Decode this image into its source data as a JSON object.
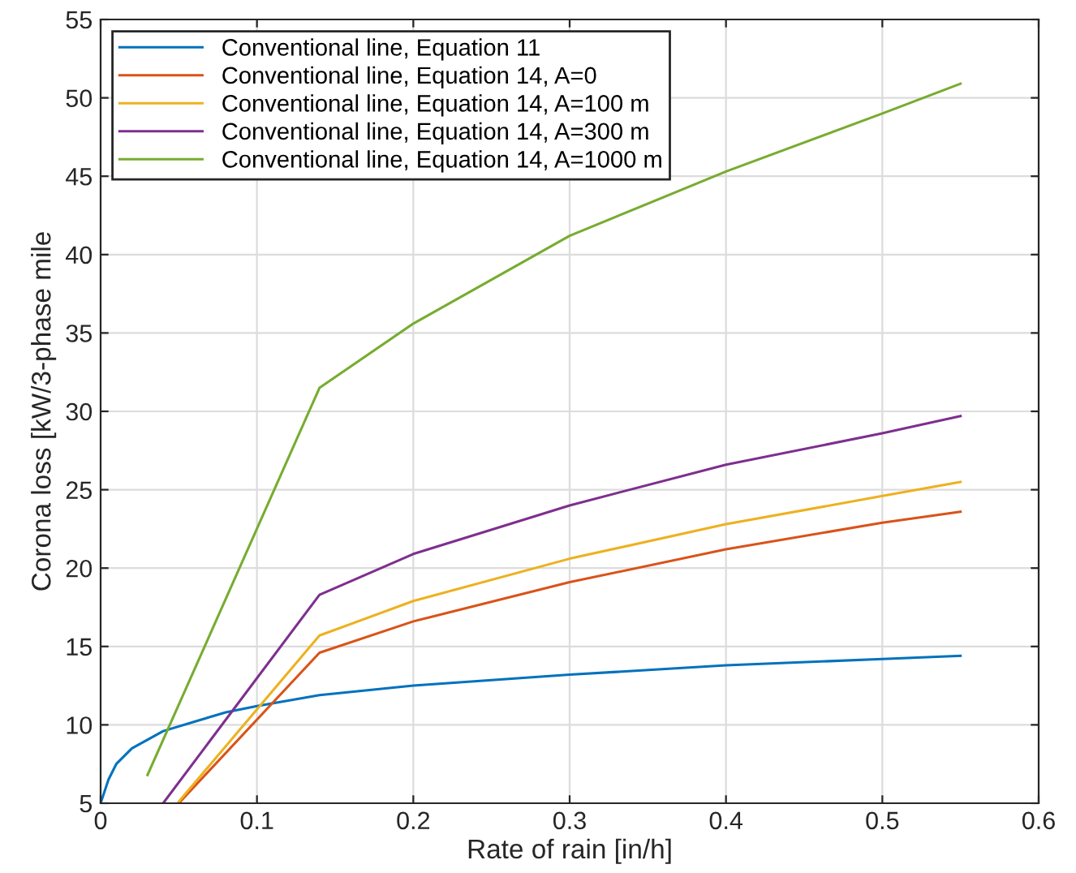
{
  "chart_data": {
    "type": "line",
    "xlabel": "Rate of rain [in/h]",
    "ylabel": "Corona loss [kW/3-phase mile",
    "xlim": [
      0,
      0.6
    ],
    "ylim": [
      5,
      55
    ],
    "xticks": [
      0,
      0.1,
      0.2,
      0.3,
      0.4,
      0.5,
      0.6
    ],
    "yticks": [
      5,
      10,
      15,
      20,
      25,
      30,
      35,
      40,
      45,
      50,
      55
    ],
    "grid": true,
    "legend": "top left",
    "marker": "none",
    "line_style": "solid",
    "series": [
      {
        "name": "Conventional line, Equation 11",
        "color": "#0072bd",
        "x": [
          0,
          0.005,
          0.01,
          0.02,
          0.04,
          0.06,
          0.08,
          0.1,
          0.14,
          0.2,
          0.3,
          0.4,
          0.5,
          0.55
        ],
        "values": [
          5,
          6.5,
          7.5,
          8.5,
          9.6,
          10.2,
          10.8,
          11.2,
          11.9,
          12.5,
          13.2,
          13.8,
          14.2,
          14.4
        ]
      },
      {
        "name": "Conventional line, Equation 14, A=0",
        "color": "#d95319",
        "x": [
          0.05,
          0.14,
          0.2,
          0.3,
          0.4,
          0.5,
          0.55
        ],
        "values": [
          5,
          14.6,
          16.6,
          19.1,
          21.2,
          22.9,
          23.6
        ]
      },
      {
        "name": "Conventional line, Equation 14, A=100 m",
        "color": "#edb120",
        "x": [
          0.05,
          0.14,
          0.2,
          0.3,
          0.4,
          0.5,
          0.55
        ],
        "values": [
          5.1,
          15.7,
          17.9,
          20.6,
          22.8,
          24.6,
          25.5
        ]
      },
      {
        "name": "Conventional line, Equation 14, A=300 m",
        "color": "#7e2f8e",
        "x": [
          0.04,
          0.14,
          0.2,
          0.3,
          0.4,
          0.5,
          0.55
        ],
        "values": [
          5,
          18.3,
          20.9,
          24.0,
          26.6,
          28.6,
          29.7
        ]
      },
      {
        "name": "Conventional line, Equation 14, A=1000 m",
        "color": "#77ac30",
        "x": [
          0.03,
          0.14,
          0.2,
          0.3,
          0.4,
          0.5,
          0.55
        ],
        "values": [
          6.8,
          31.5,
          35.6,
          41.2,
          45.3,
          49.0,
          50.9
        ]
      }
    ]
  }
}
